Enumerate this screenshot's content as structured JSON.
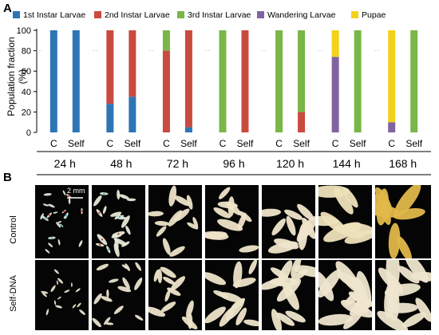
{
  "panel_a_letter": "A",
  "panel_b_letter": "B",
  "ylabel": "Population fraction (%)",
  "legend": [
    {
      "label": "1st Instar Larvae",
      "color": "#2e75b6"
    },
    {
      "label": "2nd Instar Larvae",
      "color": "#c94a3f"
    },
    {
      "label": "3rd Instar Larvae",
      "color": "#7ab648"
    },
    {
      "label": "Wandering Larvae",
      "color": "#8064a2"
    },
    {
      "label": "Pupae",
      "color": "#f2d21a"
    }
  ],
  "group_labels": [
    "C",
    "Self"
  ],
  "time_labels": [
    "24 h",
    "48 h",
    "72 h",
    "96 h",
    "120 h",
    "144 h",
    "168 h"
  ],
  "row_labels": [
    "Control",
    "Self-DNA"
  ],
  "scalebar_label": "2 mm",
  "chart_data": {
    "type": "bar",
    "stacked": true,
    "categories": [
      "24 h C",
      "24 h Self",
      "48 h C",
      "48 h Self",
      "72 h C",
      "72 h Self",
      "96 h C",
      "96 h Self",
      "120 h C",
      "120 h Self",
      "144 h C",
      "144 h Self",
      "168 h C",
      "168 h Self"
    ],
    "series": [
      {
        "name": "1st Instar Larvae",
        "values": [
          100,
          100,
          28,
          35,
          0,
          5,
          0,
          0,
          0,
          0,
          0,
          0,
          0,
          0
        ]
      },
      {
        "name": "2nd Instar Larvae",
        "values": [
          0,
          0,
          72,
          65,
          80,
          95,
          0,
          100,
          0,
          20,
          0,
          0,
          0,
          0
        ]
      },
      {
        "name": "3rd Instar Larvae",
        "values": [
          0,
          0,
          0,
          0,
          20,
          0,
          100,
          0,
          100,
          80,
          0,
          100,
          0,
          100
        ]
      },
      {
        "name": "Wandering Larvae",
        "values": [
          0,
          0,
          0,
          0,
          0,
          0,
          0,
          0,
          0,
          0,
          74,
          0,
          10,
          0
        ]
      },
      {
        "name": "Pupae",
        "values": [
          0,
          0,
          0,
          0,
          0,
          0,
          0,
          0,
          0,
          0,
          26,
          0,
          90,
          0
        ]
      }
    ],
    "ylim": [
      0,
      100
    ],
    "yticks": [
      0,
      20,
      40,
      60,
      80,
      100
    ],
    "grid": false,
    "legend_position": "top"
  },
  "photos": {
    "rows": 2,
    "cols": 7,
    "larva_color_control": [
      "#dfe8d8",
      "#e6e9d6",
      "#ece3c8",
      "#efe4c8",
      "#f0e6cc",
      "#ede2bb",
      "#e0b84a"
    ],
    "larva_color_self": [
      "#e8e2cc",
      "#e8e2cc",
      "#ede4c9",
      "#ede4c9",
      "#efe6cc",
      "#efe6cf",
      "#efe6cf"
    ]
  }
}
